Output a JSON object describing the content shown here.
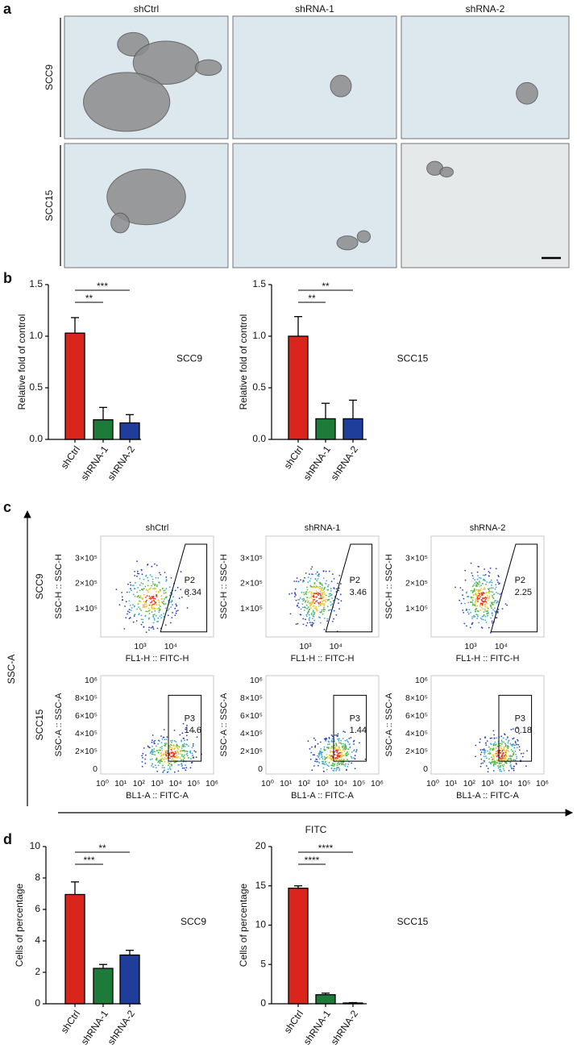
{
  "panels": {
    "a": "a",
    "b": "b",
    "c": "c",
    "d": "d"
  },
  "panel_a": {
    "columns": [
      "shCtrl",
      "shRNA-1",
      "shRNA-2"
    ],
    "rows": [
      "SCC9",
      "SCC15"
    ]
  },
  "panel_c": {
    "columns": [
      "shCtrl",
      "shRNA-1",
      "shRNA-2"
    ],
    "y_axis": "SSC-A",
    "x_axis": "FITC",
    "rows": [
      {
        "label": "SCC9",
        "y_label": "SSC-H :: SSC-H",
        "x_label": "FL1-H :: FITC-H",
        "gate": "P2",
        "y_ticks": [
          "3×10⁵",
          "2×10⁵",
          "1×10⁵"
        ],
        "x_ticks": [
          "10³",
          "10⁴"
        ],
        "gate_values": [
          "6.34",
          "3.46",
          "2.25"
        ]
      },
      {
        "label": "SCC15",
        "y_label": "SSC-A :: SSC-A",
        "x_label": "BL1-A :: FITC-A",
        "gate": "P3",
        "y_ticks": [
          "10⁶",
          "8×10⁵",
          "6×10⁵",
          "4×10⁵",
          "2×10⁵",
          "0"
        ],
        "x_ticks": [
          "10⁰",
          "10¹",
          "10²",
          "10³",
          "10⁴",
          "10⁵",
          "10⁶"
        ],
        "gate_values": [
          "14.6",
          "1.44",
          "0.18"
        ]
      }
    ]
  },
  "chart_data": [
    {
      "type": "bar",
      "ylabel": "Relative fold of control",
      "annotation": "SCC9",
      "categories": [
        "shCtrl",
        "shRNA-1",
        "shRNA-2"
      ],
      "values": [
        1.03,
        0.19,
        0.16
      ],
      "errors": [
        0.15,
        0.12,
        0.08
      ],
      "colors": [
        "#d8261c",
        "#1d7a39",
        "#1f3d9a"
      ],
      "ylim": [
        0,
        1.5
      ],
      "yticks": [
        {
          "value": 0,
          "label": "0.0"
        },
        0.5,
        {
          "value": 1,
          "label": "1.0"
        },
        1.5
      ],
      "significance": [
        "**",
        "***"
      ]
    },
    {
      "type": "bar",
      "ylabel": "Relative fold of control",
      "annotation": "SCC15",
      "categories": [
        "shCtrl",
        "shRNA-1",
        "shRNA-2"
      ],
      "values": [
        1.0,
        0.2,
        0.2
      ],
      "errors": [
        0.19,
        0.15,
        0.18
      ],
      "colors": [
        "#d8261c",
        "#1d7a39",
        "#1f3d9a"
      ],
      "ylim": [
        0,
        1.5
      ],
      "yticks": [
        {
          "value": 0,
          "label": "0.0"
        },
        0.5,
        {
          "value": 1,
          "label": "1.0"
        },
        1.5
      ],
      "significance": [
        "**",
        "**"
      ]
    },
    {
      "type": "bar",
      "ylabel": "Cells of percentage",
      "annotation": "SCC9",
      "categories": [
        "shCtrl",
        "shRNA-1",
        "shRNA-2"
      ],
      "values": [
        6.95,
        2.25,
        3.1
      ],
      "errors": [
        0.8,
        0.25,
        0.3
      ],
      "colors": [
        "#d8261c",
        "#1d7a39",
        "#1f3d9a"
      ],
      "ylim": [
        0,
        10
      ],
      "yticks": [
        0,
        2,
        4,
        6,
        8,
        10
      ],
      "significance": [
        "***",
        "**"
      ]
    },
    {
      "type": "bar",
      "ylabel": "Cells of percentage",
      "annotation": "SCC15",
      "categories": [
        "shCtrl",
        "shRNA-1",
        "shRNA-2"
      ],
      "values": [
        14.7,
        1.15,
        0.1
      ],
      "errors": [
        0.3,
        0.2,
        0.05
      ],
      "colors": [
        "#d8261c",
        "#1d7a39",
        "#1f3d9a"
      ],
      "ylim": [
        0,
        20
      ],
      "yticks": [
        0,
        5,
        10,
        15,
        20
      ],
      "significance": [
        "****",
        "****"
      ]
    }
  ]
}
